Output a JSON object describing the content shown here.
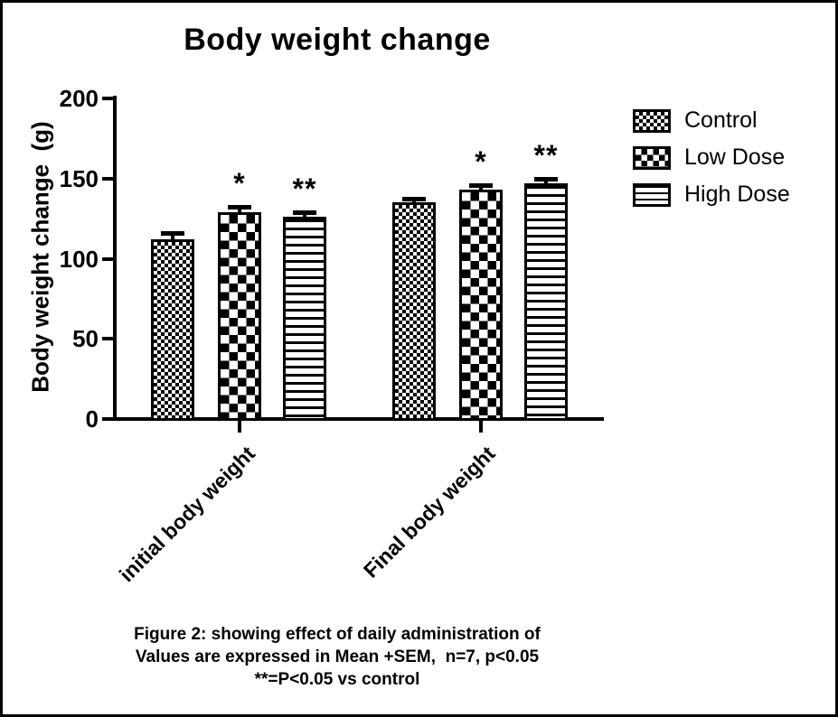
{
  "chart_data": {
    "type": "bar",
    "title": "Body weight change",
    "ylabel": "Body weight change  (g)",
    "xlabel": "",
    "categories": [
      "initial body weight",
      "Final body weight"
    ],
    "series": [
      {
        "name": "Control",
        "pattern": "fine-checker",
        "values": [
          112,
          135
        ],
        "sem": [
          3,
          1.5
        ],
        "sig": [
          "",
          ""
        ]
      },
      {
        "name": "Low Dose",
        "pattern": "checkerboard",
        "values": [
          129,
          143
        ],
        "sem": [
          2,
          2
        ],
        "sig": [
          "*",
          "*"
        ]
      },
      {
        "name": "High Dose",
        "pattern": "horizontal-lines",
        "values": [
          126,
          147
        ],
        "sem": [
          2,
          1.5
        ],
        "sig": [
          "**",
          "**"
        ]
      }
    ],
    "ylim": [
      0,
      200
    ],
    "yticks": [
      0,
      50,
      100,
      150,
      200
    ],
    "legend_position": "top-right",
    "grid": false,
    "bar_color": "#000000",
    "background": "#ffffff",
    "error_bar_note": "Mean +SEM"
  },
  "caption": {
    "line1": "Figure 2: showing effect of daily administration of",
    "line2": "Values are expressed in Mean +SEM,  n=7, p<0.05",
    "line3": "**=P<0.05 vs control"
  }
}
